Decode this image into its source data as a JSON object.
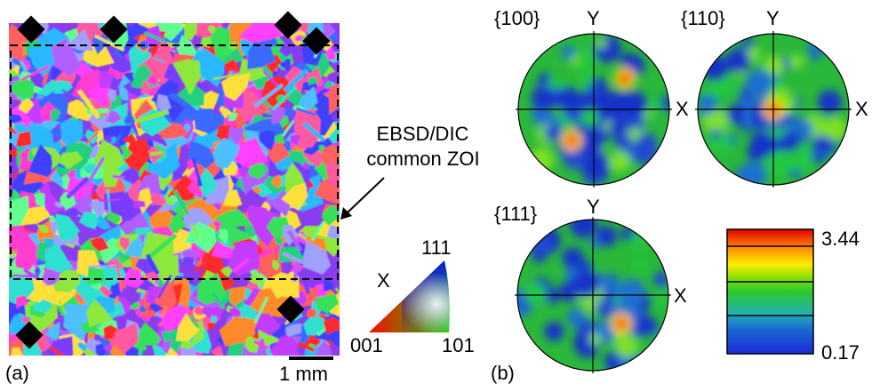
{
  "panel_a": {
    "label": "(a)",
    "annotation_line1": "EBSD/DIC",
    "annotation_line2": "common ZOI",
    "scale_bar_label": "1 mm",
    "ipf": {
      "corner_top": "111",
      "corner_left": "001",
      "corner_right": "101",
      "axis_label": "X"
    }
  },
  "panel_b": {
    "label": "(b)",
    "poles": [
      {
        "family": "{100}",
        "axis_y": "Y",
        "axis_x": "X"
      },
      {
        "family": "{110}",
        "axis_y": "Y",
        "axis_x": "X"
      },
      {
        "family": "{111}",
        "axis_y": "Y",
        "axis_x": "X"
      }
    ],
    "colorbar": {
      "max": "3.44",
      "min": "0.17"
    }
  },
  "colors": {
    "ipf_001": "#ff0000",
    "ipf_101": "#00ff00",
    "ipf_111": "#0000ff",
    "pf_low": "#1533c8",
    "pf_mid": "#22c83a",
    "pf_high": "#e00000"
  }
}
